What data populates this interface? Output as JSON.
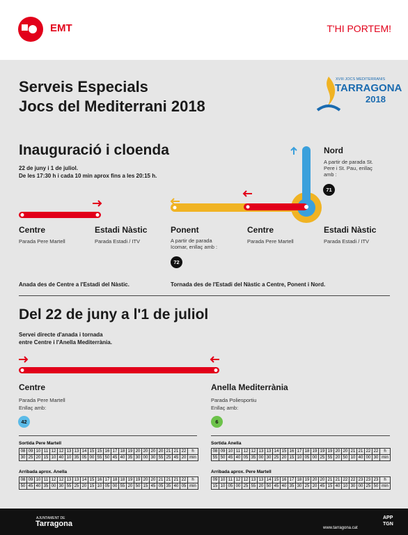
{
  "header": {
    "brand": "EMT",
    "slogan": "T'HI PORTEM!"
  },
  "title": {
    "line1": "Serveis Especials",
    "line2": "Jocs del Mediterrani 2018"
  },
  "games_logo": {
    "edition": "XVIII JOCS MEDITERRANIS",
    "city": "TARRAGONA",
    "year": "2018"
  },
  "section1": {
    "heading": "Inauguració i cloenda",
    "dates": "22 de juny i 1 de juliol.",
    "hours": "De les 17:30 h i cada 10 min aprox fins a les 20:15 h.",
    "outbound": {
      "stops": [
        {
          "name": "Centre",
          "stop": "Parada Pere Martell"
        },
        {
          "name": "Estadi Nàstic",
          "stop": "Parada Estadi / ITV"
        }
      ],
      "caption": "Anada des de Centre a l'Estadi del Nàstic."
    },
    "return": {
      "stops": [
        {
          "name": "Ponent",
          "stop": "A partir de parada Icomar, enllaç amb :",
          "link": "72"
        },
        {
          "name": "Centre",
          "stop": "Parada Pere Martell"
        },
        {
          "name": "Estadi Nàstic",
          "stop": "Parada Estadi / ITV"
        },
        {
          "name": "Nord",
          "stop": "A partir de parada St. Pere i St. Pau, enllaç amb :",
          "link": "71"
        }
      ],
      "caption": "Tornada des de l'Estadi del Nàstic a Centre, Ponent i Nord."
    }
  },
  "section2": {
    "heading": "Del 22 de juny a l'1 de juliol",
    "desc1": "Servei directe d'anada i tornada",
    "desc2": "entre Centre i l'Anella Mediterrània.",
    "stops": [
      {
        "name": "Centre",
        "stop": "Parada Pere Martell",
        "link_label": "Enllaç amb:",
        "link": "42"
      },
      {
        "name": "Anella Mediterrània",
        "stop": "Parada Poliesportiu",
        "link_label": "Enllaç amb:",
        "link": "6"
      }
    ],
    "timetables": [
      {
        "title": "Sortida Pere Martell",
        "hour_unit": "h",
        "minute_unit": "min",
        "hours": [
          "08",
          "09",
          "10",
          "11",
          "12",
          "12",
          "13",
          "13",
          "14",
          "15",
          "15",
          "16",
          "17",
          "18",
          "19",
          "20",
          "20",
          "20",
          "20",
          "21",
          "21",
          "22"
        ],
        "minutes": [
          "30",
          "25",
          "20",
          "15",
          "10",
          "40",
          "10",
          "35",
          "05",
          "00",
          "55",
          "50",
          "45",
          "40",
          "35",
          "30",
          "00",
          "30",
          "55",
          "25",
          "45",
          "20"
        ]
      },
      {
        "title": "Sortida Anella",
        "hour_unit": "h",
        "minute_unit": "min",
        "hours": [
          "08",
          "09",
          "10",
          "11",
          "12",
          "12",
          "13",
          "13",
          "14",
          "15",
          "16",
          "17",
          "18",
          "19",
          "19",
          "19",
          "20",
          "20",
          "21",
          "21",
          "22",
          "22"
        ],
        "minutes": [
          "55",
          "50",
          "45",
          "40",
          "05",
          "35",
          "00",
          "30",
          "25",
          "20",
          "15",
          "10",
          "05",
          "00",
          "25",
          "55",
          "20",
          "50",
          "10",
          "40",
          "00",
          "30"
        ]
      },
      {
        "title": "Arribada aprox. Anella",
        "hour_unit": "h",
        "minute_unit": "min",
        "hours": [
          "08",
          "09",
          "10",
          "11",
          "12",
          "12",
          "13",
          "13",
          "14",
          "15",
          "16",
          "17",
          "18",
          "18",
          "19",
          "19",
          "20",
          "20",
          "21",
          "21",
          "21",
          "22"
        ],
        "minutes": [
          "50",
          "45",
          "40",
          "35",
          "00",
          "30",
          "55",
          "25",
          "20",
          "15",
          "10",
          "05",
          "00",
          "55",
          "20",
          "50",
          "15",
          "45",
          "05",
          "35",
          "40",
          "05"
        ]
      },
      {
        "title": "Arribada aprox. Pere Martell",
        "hour_unit": "h",
        "minute_unit": "min",
        "hours": [
          "09",
          "10",
          "11",
          "12",
          "12",
          "13",
          "13",
          "14",
          "15",
          "16",
          "17",
          "18",
          "19",
          "20",
          "20",
          "21",
          "21",
          "22",
          "22",
          "23",
          "23",
          "23"
        ],
        "minutes": [
          "15",
          "10",
          "05",
          "00",
          "25",
          "55",
          "20",
          "50",
          "45",
          "40",
          "35",
          "30",
          "25",
          "20",
          "45",
          "15",
          "40",
          "10",
          "30",
          "00",
          "25",
          "50"
        ]
      }
    ]
  },
  "footer": {
    "council_small": "AJUNTAMENT DE",
    "council": "Tarragona",
    "url": "www.tarragona.cat",
    "app": "APP",
    "app2": "TGN"
  }
}
